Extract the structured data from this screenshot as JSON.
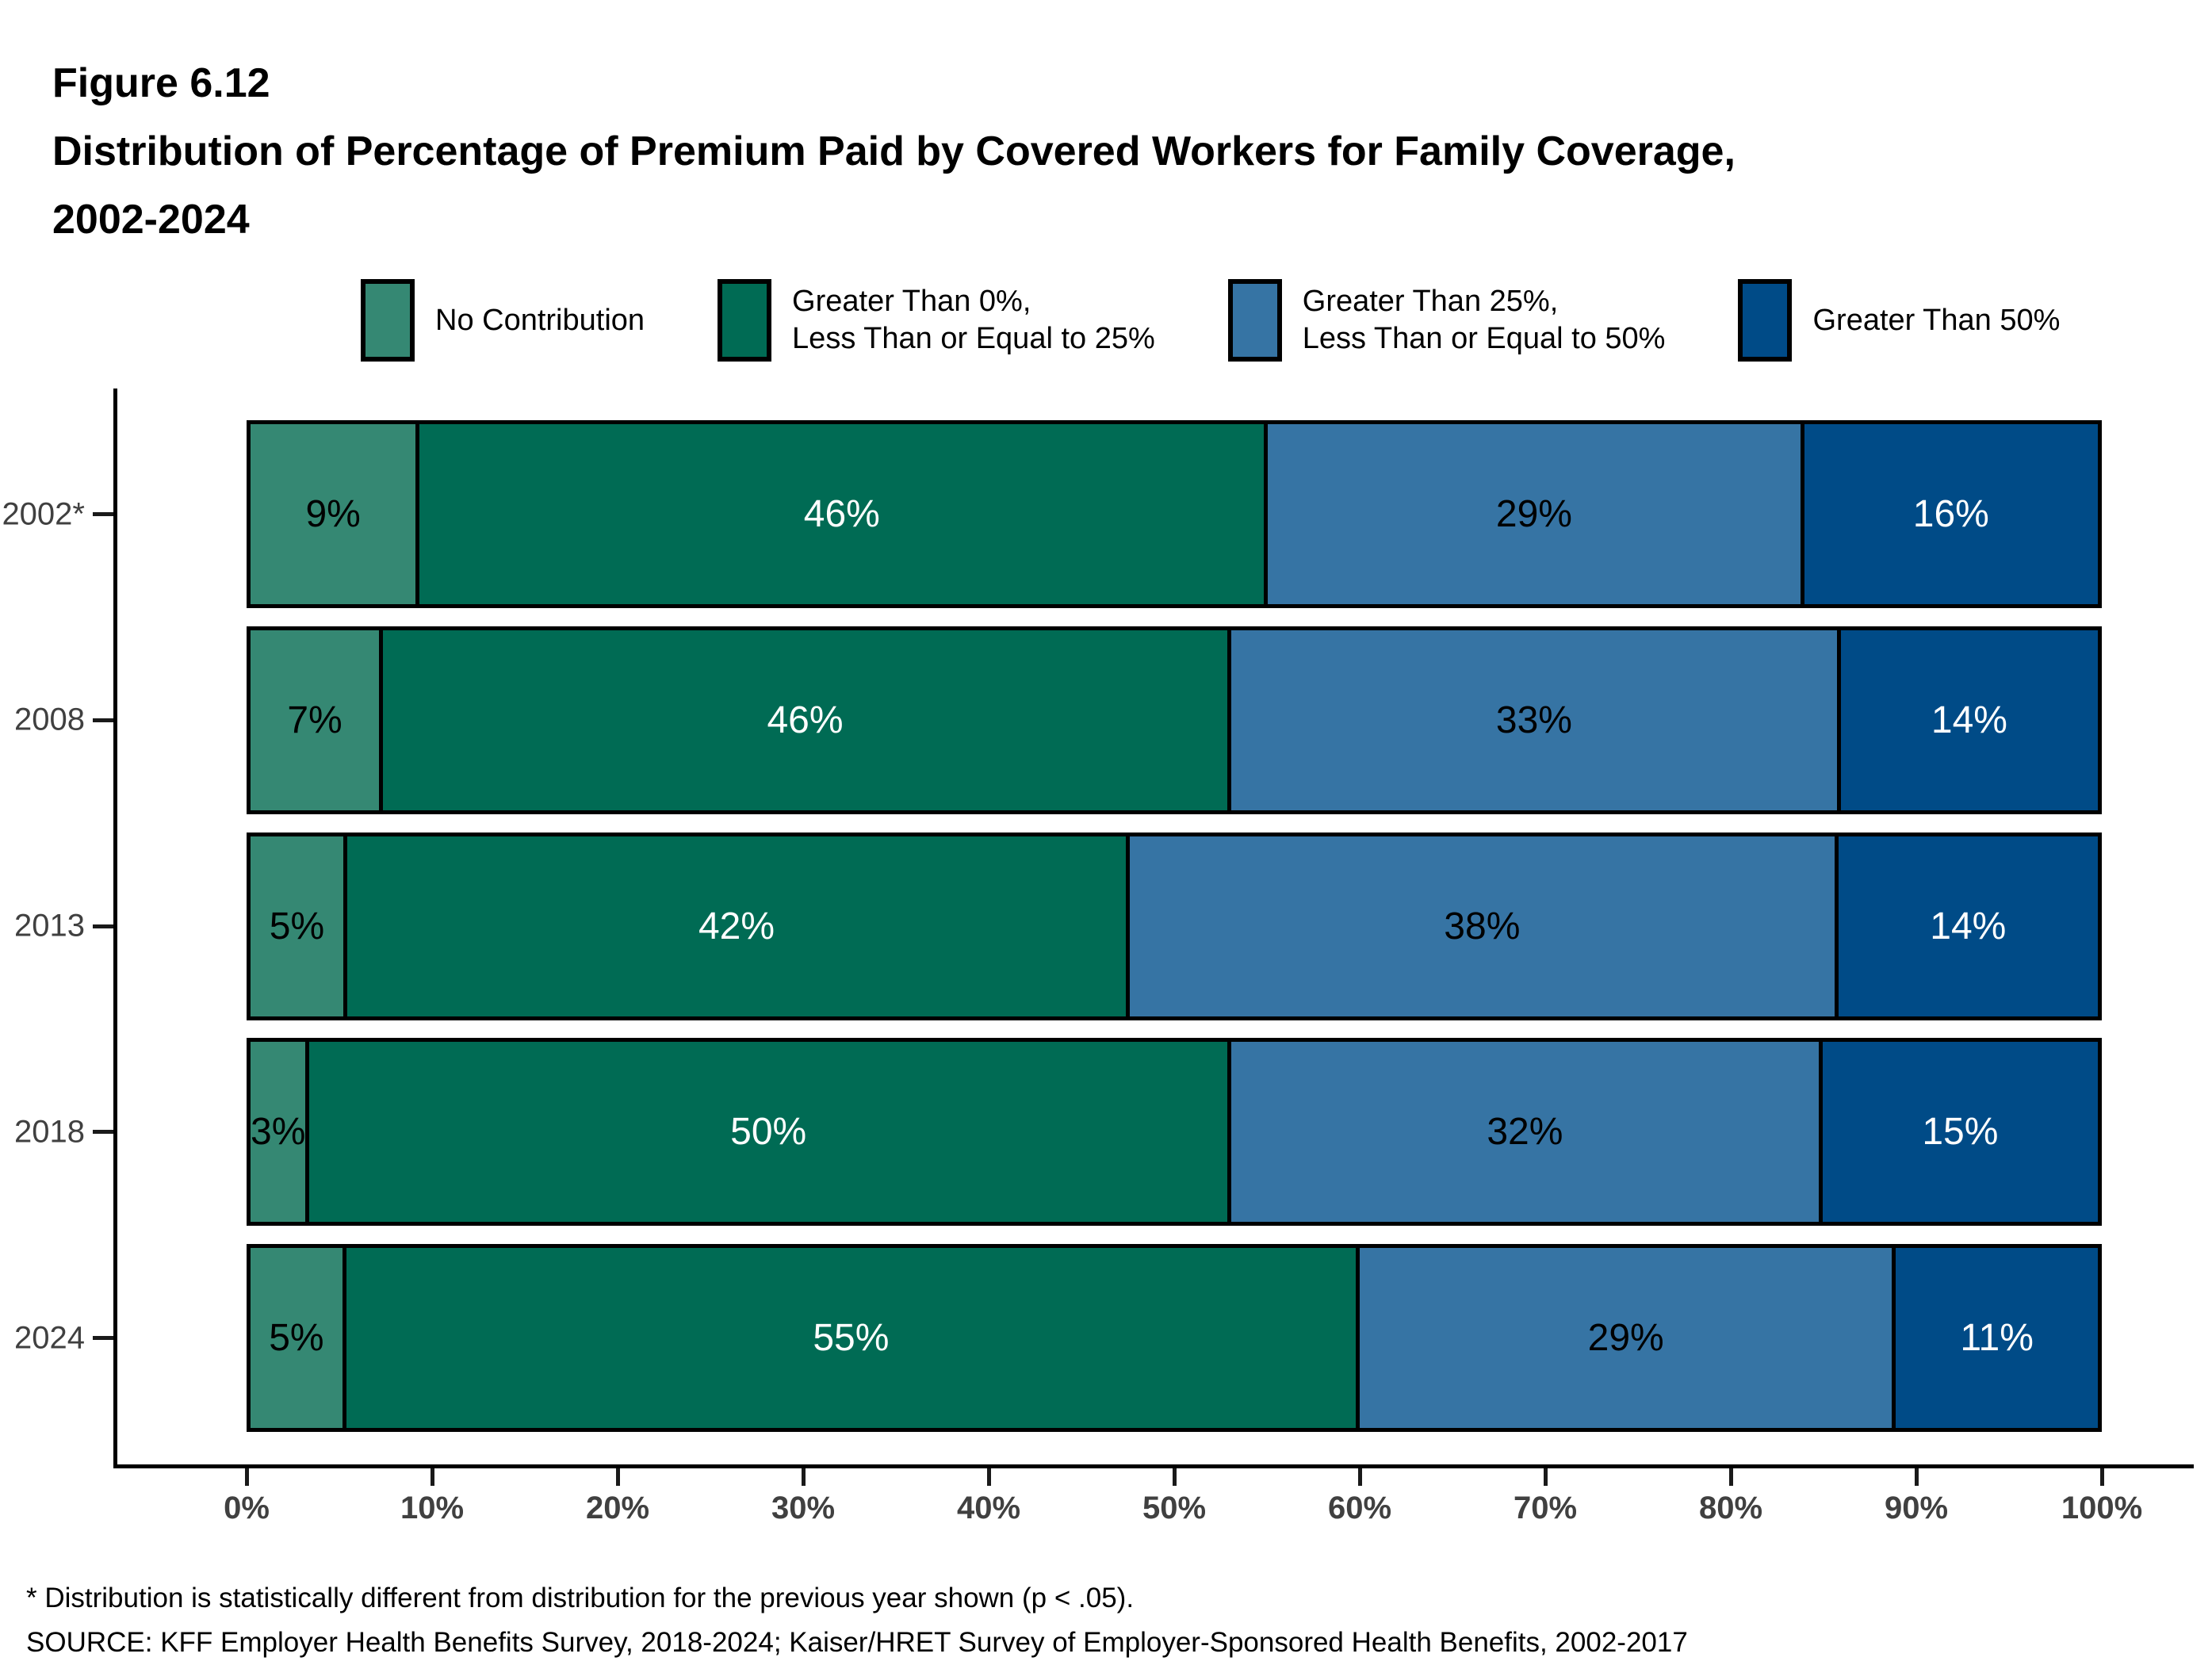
{
  "figure": {
    "label": "Figure 6.12",
    "title_line1": "Distribution of Percentage of Premium Paid by Covered Workers for Family Coverage,",
    "title_line2": "2002-2024"
  },
  "colors": {
    "no_contribution": "#358873",
    "gt0_le25": "#006B54",
    "gt25_le50": "#3674A4",
    "gt50": "#004B87",
    "axis": "#000000",
    "tick_label": "#404040"
  },
  "legend": {
    "items": [
      {
        "label_lines": [
          "No Contribution"
        ],
        "color": "#358873"
      },
      {
        "label_lines": [
          "Greater Than 0%,",
          "Less Than or Equal to 25%"
        ],
        "color": "#006B54"
      },
      {
        "label_lines": [
          "Greater Than 25%,",
          "Less Than or Equal to 50%"
        ],
        "color": "#3674A4"
      },
      {
        "label_lines": [
          "Greater Than 50%"
        ],
        "color": "#004B87"
      }
    ]
  },
  "chart_data": {
    "type": "bar",
    "orientation": "horizontal",
    "stacked": true,
    "title": "Distribution of Percentage of Premium Paid by Covered Workers for Family Coverage, 2002-2024",
    "categories": [
      "2002*",
      "2008",
      "2013",
      "2018",
      "2024"
    ],
    "series": [
      {
        "name": "No Contribution",
        "color": "#358873",
        "label_color": "#000000",
        "values": [
          9,
          7,
          5,
          3,
          5
        ]
      },
      {
        "name": "Greater Than 0%, Less Than or Equal to 25%",
        "color": "#006B54",
        "label_color": "#FFFFFF",
        "values": [
          46,
          46,
          42,
          50,
          55
        ]
      },
      {
        "name": "Greater Than 25%, Less Than or Equal to 50%",
        "color": "#3674A4",
        "label_color": "#000000",
        "values": [
          29,
          33,
          38,
          32,
          29
        ]
      },
      {
        "name": "Greater Than 50%",
        "color": "#004B87",
        "label_color": "#FFFFFF",
        "values": [
          16,
          14,
          14,
          15,
          11
        ]
      }
    ],
    "value_suffix": "%",
    "x_axis": {
      "range": [
        0,
        100
      ],
      "ticks": [
        "0%",
        "10%",
        "20%",
        "30%",
        "40%",
        "50%",
        "60%",
        "70%",
        "80%",
        "90%",
        "100%"
      ]
    },
    "legend_position": "top",
    "grid": false
  },
  "footnotes": {
    "asterisk": "* Distribution is statistically different from distribution for the previous year shown (p < .05).",
    "source": "SOURCE: KFF Employer Health Benefits Survey, 2018-2024; Kaiser/HRET Survey of Employer-Sponsored Health Benefits, 2002-2017"
  }
}
